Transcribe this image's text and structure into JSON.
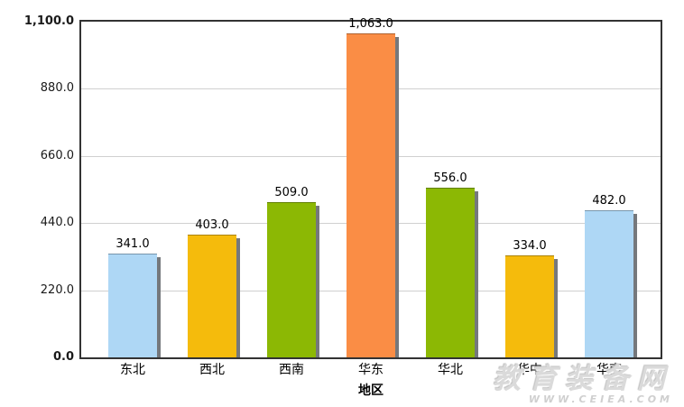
{
  "chart_data": {
    "type": "bar",
    "title": "",
    "categories": [
      "东北",
      "西北",
      "西南",
      "华东",
      "华北",
      "华中",
      "华南"
    ],
    "values": [
      341.0,
      403.0,
      509.0,
      1063.0,
      556.0,
      334.0,
      482.0
    ],
    "value_labels": [
      "341.0",
      "403.0",
      "509.0",
      "1,063.0",
      "556.0",
      "334.0",
      "482.0"
    ],
    "bar_colors": [
      "#AED7F5",
      "#F5BB0C",
      "#8CB804",
      "#FA8D45",
      "#8CB804",
      "#F5BB0C",
      "#AED7F5"
    ],
    "xlabel": "地区",
    "ylabel": "",
    "ylim": [
      0,
      1100
    ],
    "yticks": [
      {
        "value": 0,
        "label": "0.0",
        "bold": true
      },
      {
        "value": 220,
        "label": "220.0",
        "bold": false
      },
      {
        "value": 440,
        "label": "440.0",
        "bold": false
      },
      {
        "value": 660,
        "label": "660.0",
        "bold": false
      },
      {
        "value": 880,
        "label": "880.0",
        "bold": false
      },
      {
        "value": 1100,
        "label": "1,100.0",
        "bold": true
      }
    ],
    "grid": true,
    "legend": null
  },
  "watermark": {
    "line1": "教育装备网",
    "line2": "WWW.CEIEA.COM"
  },
  "colors": {
    "axis_border": "#333333",
    "gridline": "#d0d0d0",
    "bar_shadow": "#75787c",
    "watermark_gray": "#dadada",
    "background": "#ffffff"
  }
}
